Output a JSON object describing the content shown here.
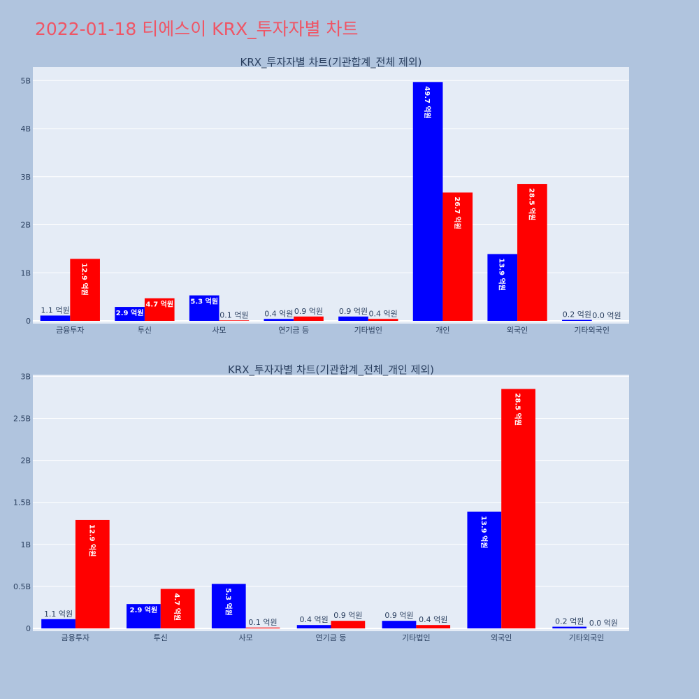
{
  "page": {
    "title": "2022-01-18 티에스이 KRX_투자자별 차트",
    "background": "#b0c4de",
    "title_color": "#ef5565",
    "plot_background": "#e5ecf6"
  },
  "chart_data": [
    {
      "type": "bar",
      "title": "KRX_투자자별 차트(기관합계_전체 제외)",
      "categories": [
        "금융투자",
        "투신",
        "사모",
        "연기금 등",
        "기타법인",
        "개인",
        "외국인",
        "기타외국인"
      ],
      "series": [
        {
          "color": "#0000ff",
          "values": [
            110000000,
            290000000,
            530000000,
            40000000,
            90000000,
            4970000000,
            1390000000,
            20000000
          ],
          "labels": [
            "1.1 억원",
            "2.9 억원",
            "5.3 억원",
            "0.4 억원",
            "0.9 억원",
            "49.7 억원",
            "13.9 억원",
            "0.2 억원"
          ]
        },
        {
          "color": "#ff0000",
          "values": [
            1290000000,
            470000000,
            10000000,
            90000000,
            40000000,
            2670000000,
            2850000000,
            0
          ],
          "labels": [
            "12.9 억원",
            "4.7 억원",
            "0.1 억원",
            "0.9 억원",
            "0.4 억원",
            "26.7 억원",
            "28.5 억원",
            "0.0 억원"
          ]
        }
      ],
      "ylim": [
        0,
        5280000000
      ],
      "yticks": [
        0,
        1000000000,
        2000000000,
        3000000000,
        4000000000,
        5000000000
      ],
      "yticklabels": [
        "0",
        "1B",
        "2B",
        "3B",
        "4B",
        "5B"
      ],
      "grid": true,
      "legend": "none"
    },
    {
      "type": "bar",
      "title": "KRX_투자자별 차트(기관합계_전체_개인 제외)",
      "categories": [
        "금융투자",
        "투신",
        "사모",
        "연기금 등",
        "기타법인",
        "외국인",
        "기타외국인"
      ],
      "series": [
        {
          "color": "#0000ff",
          "values": [
            110000000,
            290000000,
            530000000,
            40000000,
            90000000,
            1390000000,
            20000000
          ],
          "labels": [
            "1.1 억원",
            "2.9 억원",
            "5.3 억원",
            "0.4 억원",
            "0.9 억원",
            "13.9 억원",
            "0.2 억원"
          ]
        },
        {
          "color": "#ff0000",
          "values": [
            1290000000,
            470000000,
            10000000,
            90000000,
            40000000,
            2850000000,
            0
          ],
          "labels": [
            "12.9 억원",
            "4.7 억원",
            "0.1 억원",
            "0.9 억원",
            "0.4 억원",
            "28.5 억원",
            "0.0 억원"
          ]
        }
      ],
      "ylim": [
        0,
        3020000000
      ],
      "yticks": [
        0,
        500000000,
        1000000000,
        1500000000,
        2000000000,
        2500000000,
        3000000000
      ],
      "yticklabels": [
        "0",
        "0.5B",
        "1B",
        "1.5B",
        "2B",
        "2.5B",
        "3B"
      ],
      "grid": true,
      "legend": "none"
    }
  ]
}
